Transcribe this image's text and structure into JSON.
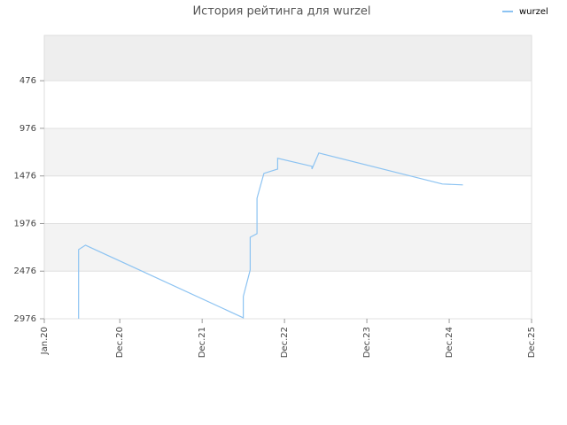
{
  "chart_data": {
    "type": "line",
    "title": "История рейтинга для wurzel",
    "x": [
      "2020-06",
      "2020-06",
      "2020-07",
      "2022-06",
      "2022-06",
      "2022-07",
      "2022-07",
      "2022-08",
      "2022-08",
      "2022-09",
      "2022-11",
      "2022-11",
      "2023-04",
      "2023-04",
      "2023-05",
      "2024-11",
      "2025-02"
    ],
    "series": [
      {
        "name": "wurzel",
        "color": "#8cc3f2",
        "values": [
          2976,
          2250,
          2203,
          2966,
          2743,
          2464,
          2120,
          2082,
          1710,
          1449,
          1403,
          1291,
          1375,
          1403,
          1235,
          1561,
          1570
        ]
      }
    ],
    "xlim": [
      "2020-01",
      "2025-12"
    ],
    "xticks": [
      {
        "value": "2020-01",
        "label": "Jan.20"
      },
      {
        "value": "2020-12",
        "label": "Dec.20"
      },
      {
        "value": "2021-12",
        "label": "Dec.21"
      },
      {
        "value": "2022-12",
        "label": "Dec.22"
      },
      {
        "value": "2023-12",
        "label": "Dec.23"
      },
      {
        "value": "2024-12",
        "label": "Dec.24"
      },
      {
        "value": "2025-12",
        "label": "Dec.25"
      }
    ],
    "ylim": [
      2976,
      0
    ],
    "yticks": [
      476,
      976,
      1476,
      1976,
      2476,
      2976
    ],
    "legend": "top-right",
    "grid": true
  }
}
